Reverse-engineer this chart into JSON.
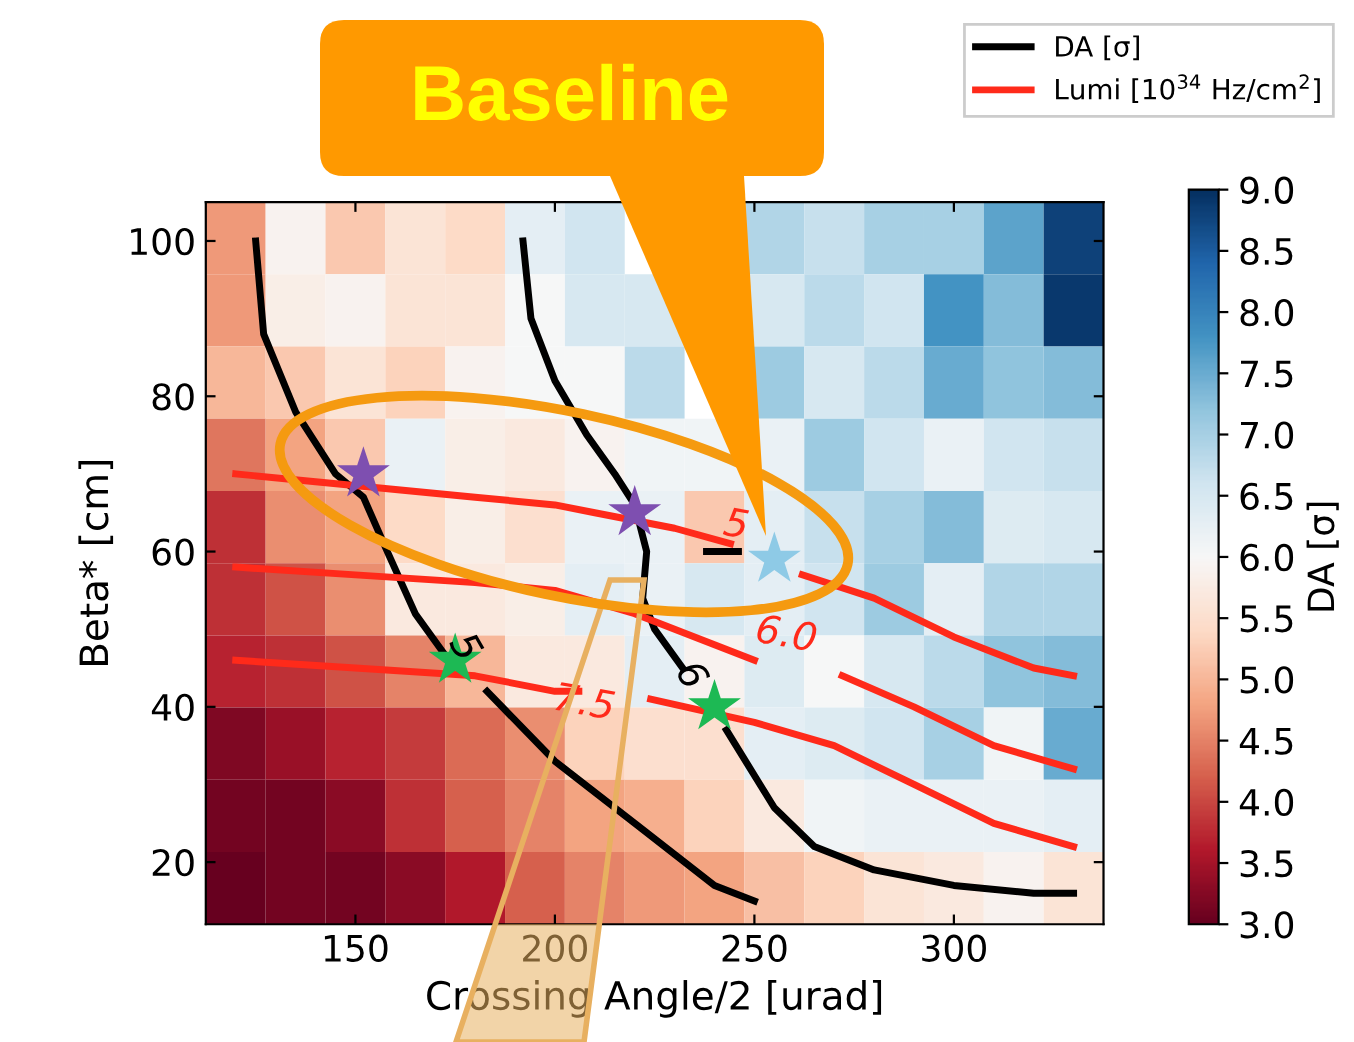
{
  "chart_data": {
    "type": "heatmap",
    "xlabel": "Crossing Angle/2 [urad]",
    "ylabel": "Beta* [cm]",
    "clabel": "DA [σ]",
    "x": [
      120,
      135,
      150,
      165,
      180,
      195,
      210,
      225,
      240,
      255,
      270,
      285,
      300,
      315,
      330
    ],
    "cells": [
      [
        4.7,
        5.9,
        5.2,
        5.6,
        5.4,
        6.3,
        6.6,
        null,
        null,
        6.9,
        6.7,
        7.0,
        7.0,
        7.6,
        8.8
      ],
      [
        4.7,
        5.8,
        5.9,
        5.6,
        5.6,
        6.0,
        6.5,
        6.5,
        null,
        6.5,
        6.8,
        6.6,
        7.8,
        7.3,
        8.9
      ],
      [
        5.0,
        5.2,
        5.6,
        5.3,
        5.9,
        6.0,
        6.0,
        6.8,
        null,
        7.1,
        6.5,
        6.8,
        7.5,
        7.2,
        7.3
      ],
      [
        4.4,
        4.8,
        5.2,
        6.2,
        5.8,
        5.7,
        5.9,
        6.1,
        6.1,
        6.2,
        7.1,
        6.6,
        6.2,
        6.6,
        6.7
      ],
      [
        3.8,
        4.6,
        4.8,
        5.4,
        5.8,
        5.5,
        6.2,
        6.2,
        5.2,
        6.3,
        6.7,
        7.0,
        7.3,
        6.4,
        6.5
      ],
      [
        3.8,
        4.1,
        4.6,
        5.7,
        5.7,
        5.8,
        6.3,
        6.2,
        6.5,
        6.3,
        6.6,
        7.1,
        6.3,
        6.9,
        6.9
      ],
      [
        3.7,
        3.8,
        4.1,
        4.5,
        5.0,
        5.7,
        5.7,
        6.3,
        5.9,
        6.4,
        6.0,
        6.5,
        6.8,
        7.2,
        7.3
      ],
      [
        3.2,
        3.4,
        3.7,
        3.9,
        4.3,
        4.6,
        5.3,
        5.5,
        5.5,
        6.3,
        6.4,
        6.6,
        7.0,
        6.1,
        7.5
      ],
      [
        3.1,
        3.1,
        3.3,
        3.8,
        4.2,
        4.5,
        4.8,
        4.9,
        5.3,
        5.7,
        6.1,
        6.2,
        6.2,
        6.2,
        6.3
      ],
      [
        3.0,
        3.1,
        3.1,
        3.3,
        3.6,
        4.2,
        4.5,
        4.7,
        4.8,
        5.1,
        5.3,
        5.6,
        5.7,
        5.9,
        5.6
      ]
    ],
    "clim": [
      3.0,
      9.0
    ],
    "cticks": [
      {
        "value": 3.0,
        "label": "3.0"
      },
      {
        "value": 3.5,
        "label": "3.5"
      },
      {
        "value": 4.0,
        "label": "4.0"
      },
      {
        "value": 4.5,
        "label": "4.5"
      },
      {
        "value": 5.0,
        "label": "5.0"
      },
      {
        "value": 5.5,
        "label": "5.5"
      },
      {
        "value": 6.0,
        "label": "6.0"
      },
      {
        "value": 6.5,
        "label": "6.5"
      },
      {
        "value": 7.0,
        "label": "7.0"
      },
      {
        "value": 7.5,
        "label": "7.5"
      },
      {
        "value": 8.0,
        "label": "8.0"
      },
      {
        "value": 8.5,
        "label": "8.5"
      },
      {
        "value": 9.0,
        "label": "9.0"
      }
    ],
    "xlim": [
      112.5,
      337.5
    ],
    "ylim": [
      12,
      105
    ],
    "xticks": [
      150,
      200,
      250,
      300
    ],
    "yticks": [
      20,
      40,
      60,
      80,
      100
    ],
    "series": [
      {
        "type": "line",
        "name": "DA [σ]",
        "color": "#000000",
        "x": [
          125,
          127,
          135,
          145,
          152,
          158,
          165,
          172
        ],
        "values": [
          100,
          88,
          78,
          70,
          67,
          60,
          52,
          47
        ]
      },
      {
        "type": "line",
        "color": "#000000",
        "x": [
          183,
          200,
          220,
          240,
          250
        ],
        "values": [
          42,
          33,
          25,
          17,
          15
        ]
      },
      {
        "type": "line",
        "color": "#000000",
        "x": [
          192,
          194,
          200,
          208,
          215,
          220,
          222,
          223,
          222,
          225,
          232
        ],
        "values": [
          100,
          90,
          82,
          75,
          70,
          66,
          62,
          60,
          54,
          50,
          45
        ]
      },
      {
        "type": "line",
        "color": "#000000",
        "x": [
          243,
          255,
          265,
          280,
          300,
          320,
          330
        ],
        "values": [
          37,
          27,
          22,
          19,
          17,
          16,
          16
        ]
      },
      {
        "type": "line",
        "color": "#000000",
        "x": [
          238,
          246
        ],
        "values": [
          60,
          60
        ]
      },
      {
        "type": "line",
        "name": "Lumi [10$^{34}$ Hz/cm$^{2}$]",
        "color": "#ff2a1a",
        "x": [
          120,
          140,
          160,
          180,
          200,
          210,
          230,
          244
        ],
        "values": [
          70,
          69,
          68,
          67,
          66,
          65,
          63,
          61
        ]
      },
      {
        "type": "line",
        "color": "#ff2a1a",
        "x": [
          262,
          280,
          300,
          320,
          330
        ],
        "values": [
          57,
          54,
          49,
          45,
          44
        ]
      },
      {
        "type": "line",
        "color": "#ff2a1a",
        "x": [
          120,
          150,
          180,
          200,
          220,
          240,
          250
        ],
        "values": [
          58,
          57,
          56,
          55,
          52,
          48,
          46
        ]
      },
      {
        "type": "line",
        "color": "#ff2a1a",
        "x": [
          272,
          290,
          310,
          330
        ],
        "values": [
          44,
          40,
          35,
          32
        ]
      },
      {
        "type": "line",
        "color": "#ff2a1a",
        "x": [
          120,
          150,
          180,
          200,
          206
        ],
        "values": [
          46,
          45,
          44,
          42,
          42
        ]
      },
      {
        "type": "line",
        "color": "#ff2a1a",
        "x": [
          224,
          250,
          270,
          290,
          310,
          330
        ],
        "values": [
          41,
          38,
          35,
          30,
          25,
          22
        ]
      },
      {
        "type": "scatter",
        "color": "#7e4fb0",
        "marker": "star",
        "x": [
          152,
          220
        ],
        "values": [
          70,
          65
        ]
      },
      {
        "type": "scatter",
        "color": "#1db954",
        "marker": "star",
        "x": [
          175,
          240
        ],
        "values": [
          46,
          40
        ]
      },
      {
        "type": "scatter",
        "color": "#8ecae6",
        "marker": "star",
        "x": [
          255
        ],
        "values": [
          59
        ]
      }
    ],
    "annotations": [
      "5",
      "6.0",
      "7.5",
      "5",
      "6",
      "Baseline"
    ],
    "legend": "top right",
    "grid": false
  }
}
